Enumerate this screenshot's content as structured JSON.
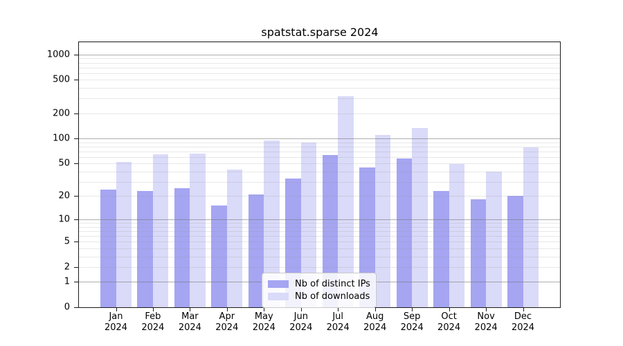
{
  "title": "spatstat.sparse 2024",
  "chart_data": {
    "type": "bar",
    "title": "spatstat.sparse 2024",
    "categories": [
      "Jan",
      "Feb",
      "Mar",
      "Apr",
      "May",
      "Jun",
      "Jul",
      "Aug",
      "Sep",
      "Oct",
      "Nov",
      "Dec"
    ],
    "category_year": "2024",
    "series": [
      {
        "name": "Nb of distinct IPs",
        "color": "#a5a5f2",
        "values": [
          24,
          23,
          25,
          15,
          21,
          33,
          63,
          45,
          57,
          23,
          18,
          20
        ]
      },
      {
        "name": "Nb of downloads",
        "color": "#dadaf9",
        "values": [
          52,
          64,
          66,
          42,
          95,
          90,
          320,
          110,
          133,
          49,
          40,
          78
        ]
      }
    ],
    "xlabel": "",
    "ylabel": "",
    "yscale": "log1p",
    "ylim": [
      0,
      1400
    ],
    "yticks": [
      0,
      1,
      2,
      5,
      10,
      20,
      50,
      100,
      200,
      500,
      1000
    ],
    "grid_major": [
      1,
      10,
      100,
      1000
    ],
    "grid_minor": [
      2,
      3,
      4,
      5,
      6,
      7,
      8,
      9,
      20,
      30,
      40,
      50,
      60,
      70,
      80,
      90,
      200,
      300,
      400,
      500,
      600,
      700,
      800,
      900
    ],
    "grid": "on",
    "legend_position": "lower center"
  }
}
